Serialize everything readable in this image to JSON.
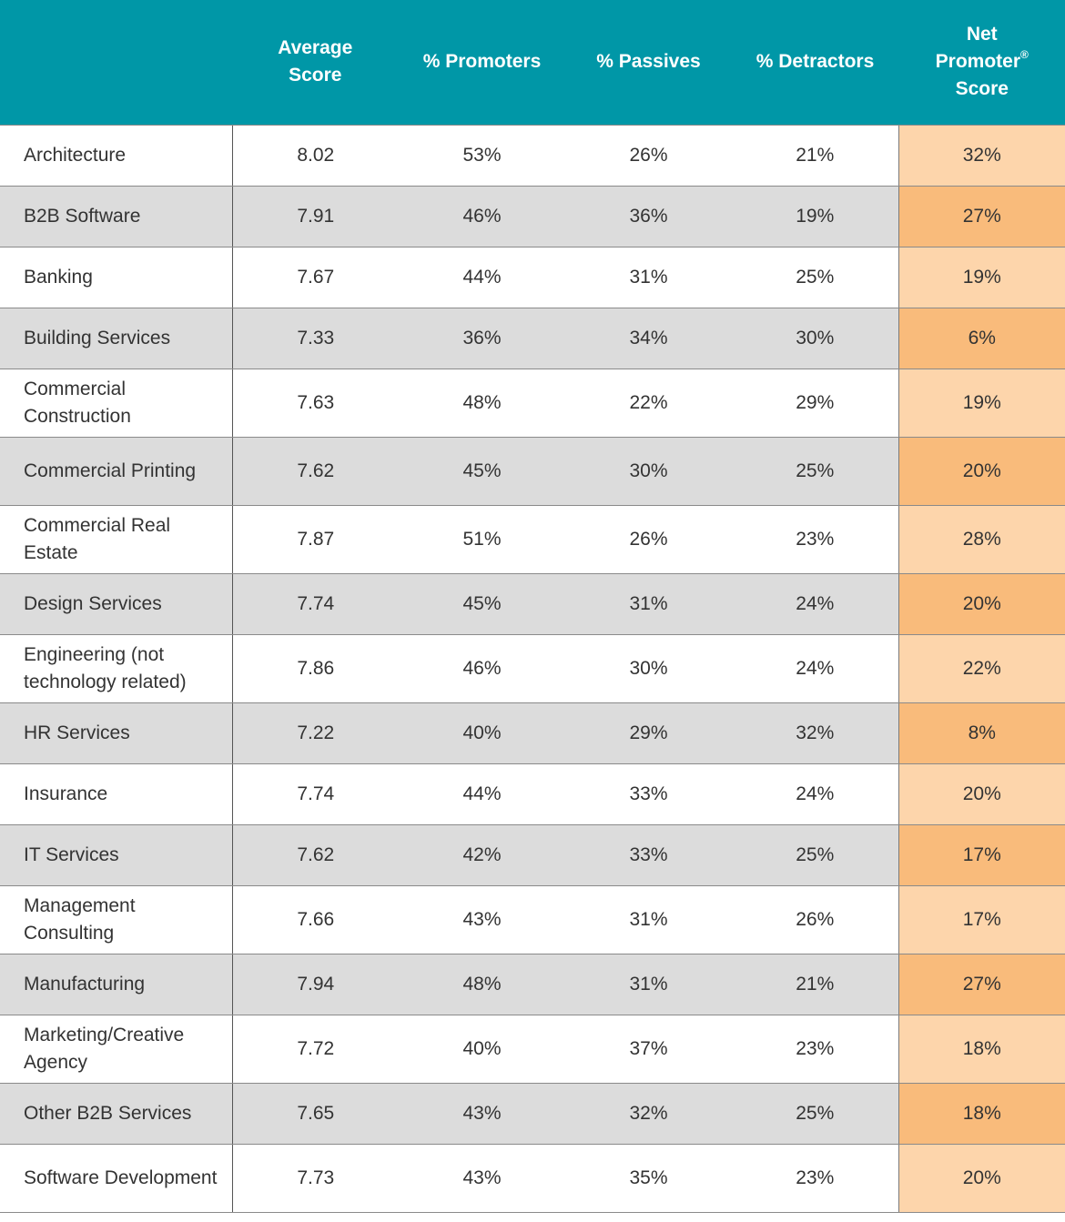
{
  "chart_data": {
    "type": "table",
    "columns": [
      "",
      "Average Score",
      "% Promoters",
      "% Passives",
      "% Detractors",
      "Net Promoter® Score"
    ],
    "header": {
      "industry": "",
      "avg_line1": "Average",
      "avg_line2": "Score",
      "promoters": "% Promoters",
      "passives": "% Passives",
      "detractors": "% Detractors",
      "nps_line1": "Net",
      "nps_line2": "Promoter",
      "nps_reg": "®",
      "nps_line3": "Score"
    },
    "rows": [
      {
        "industry": "Architecture",
        "avg": "8.02",
        "promoters": "53%",
        "passives": "26%",
        "detractors": "21%",
        "nps": "32%"
      },
      {
        "industry": "B2B Software",
        "avg": "7.91",
        "promoters": "46%",
        "passives": "36%",
        "detractors": "19%",
        "nps": "27%"
      },
      {
        "industry": "Banking",
        "avg": "7.67",
        "promoters": "44%",
        "passives": "31%",
        "detractors": "25%",
        "nps": "19%"
      },
      {
        "industry": "Building Services",
        "avg": "7.33",
        "promoters": "36%",
        "passives": "34%",
        "detractors": "30%",
        "nps": "6%"
      },
      {
        "industry": "Commercial Construction",
        "avg": "7.63",
        "promoters": "48%",
        "passives": "22%",
        "detractors": "29%",
        "nps": "19%"
      },
      {
        "industry": "Commercial Printing",
        "avg": "7.62",
        "promoters": "45%",
        "passives": "30%",
        "detractors": "25%",
        "nps": "20%"
      },
      {
        "industry": "Commercial Real Estate",
        "avg": "7.87",
        "promoters": "51%",
        "passives": "26%",
        "detractors": "23%",
        "nps": "28%"
      },
      {
        "industry": "Design Services",
        "avg": "7.74",
        "promoters": "45%",
        "passives": "31%",
        "detractors": "24%",
        "nps": "20%"
      },
      {
        "industry": "Engineering (not technology related)",
        "avg": "7.86",
        "promoters": "46%",
        "passives": "30%",
        "detractors": "24%",
        "nps": "22%"
      },
      {
        "industry": "HR Services",
        "avg": "7.22",
        "promoters": "40%",
        "passives": "29%",
        "detractors": "32%",
        "nps": "8%"
      },
      {
        "industry": "Insurance",
        "avg": "7.74",
        "promoters": "44%",
        "passives": "33%",
        "detractors": "24%",
        "nps": "20%"
      },
      {
        "industry": "IT Services",
        "avg": "7.62",
        "promoters": "42%",
        "passives": "33%",
        "detractors": "25%",
        "nps": "17%"
      },
      {
        "industry": "Management Consulting",
        "avg": "7.66",
        "promoters": "43%",
        "passives": "31%",
        "detractors": "26%",
        "nps": "17%"
      },
      {
        "industry": "Manufacturing",
        "avg": "7.94",
        "promoters": "48%",
        "passives": "31%",
        "detractors": "21%",
        "nps": "27%"
      },
      {
        "industry": "Marketing/Creative Agency",
        "avg": "7.72",
        "promoters": "40%",
        "passives": "37%",
        "detractors": "23%",
        "nps": "18%"
      },
      {
        "industry": "Other B2B Services",
        "avg": "7.65",
        "promoters": "43%",
        "passives": "32%",
        "detractors": "25%",
        "nps": "18%"
      },
      {
        "industry": "Software Development",
        "avg": "7.73",
        "promoters": "43%",
        "passives": "35%",
        "detractors": "23%",
        "nps": "20%"
      }
    ]
  },
  "colors": {
    "header_bg": "#0097a7",
    "header_text": "#ffffff",
    "row_even_bg": "#dcdcdc",
    "nps_light": "#fdd5ab",
    "nps_dark": "#f9bb7b"
  }
}
